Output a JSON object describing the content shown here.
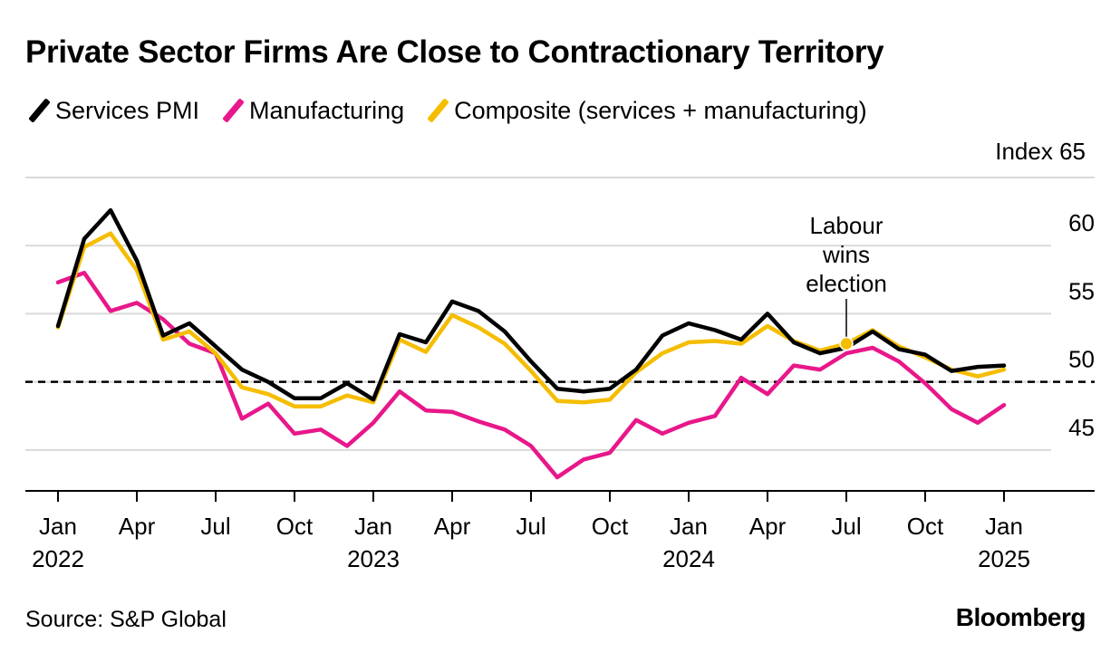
{
  "title": "Private Sector Firms Are Close to Contractionary Territory",
  "unit_label": "Index 65",
  "source": "Source: S&P Global",
  "brand": "Bloomberg",
  "colors": {
    "services": "#000000",
    "manufacturing": "#e8178a",
    "composite": "#f5bd00",
    "grid": "#d9d9d9",
    "axis": "#000000"
  },
  "chart_data": {
    "type": "line",
    "title": "Private Sector Firms Are Close to Contractionary Territory",
    "ylabel": "Index",
    "ylim": [
      42,
      65
    ],
    "yticks": [
      45,
      50,
      55,
      60
    ],
    "reference_line": 50,
    "x": [
      "2022-01",
      "2022-02",
      "2022-03",
      "2022-04",
      "2022-05",
      "2022-06",
      "2022-07",
      "2022-08",
      "2022-09",
      "2022-10",
      "2022-11",
      "2022-12",
      "2023-01",
      "2023-02",
      "2023-03",
      "2023-04",
      "2023-05",
      "2023-06",
      "2023-07",
      "2023-08",
      "2023-09",
      "2023-10",
      "2023-11",
      "2023-12",
      "2024-01",
      "2024-02",
      "2024-03",
      "2024-04",
      "2024-05",
      "2024-06",
      "2024-07",
      "2024-08",
      "2024-09",
      "2024-10",
      "2024-11",
      "2024-12",
      "2025-01"
    ],
    "x_ticks": [
      {
        "index": 0,
        "label": "Jan",
        "year": "2022"
      },
      {
        "index": 3,
        "label": "Apr"
      },
      {
        "index": 6,
        "label": "Jul"
      },
      {
        "index": 9,
        "label": "Oct"
      },
      {
        "index": 12,
        "label": "Jan",
        "year": "2023"
      },
      {
        "index": 15,
        "label": "Apr"
      },
      {
        "index": 18,
        "label": "Jul"
      },
      {
        "index": 21,
        "label": "Oct"
      },
      {
        "index": 24,
        "label": "Jan",
        "year": "2024"
      },
      {
        "index": 27,
        "label": "Apr"
      },
      {
        "index": 30,
        "label": "Jul"
      },
      {
        "index": 33,
        "label": "Oct"
      },
      {
        "index": 36,
        "label": "Jan",
        "year": "2025"
      }
    ],
    "series": [
      {
        "key": "manufacturing",
        "name": "Manufacturing",
        "values": [
          57.3,
          58.0,
          55.2,
          55.8,
          54.6,
          52.8,
          52.1,
          47.3,
          48.4,
          46.2,
          46.5,
          45.3,
          47.0,
          49.3,
          47.9,
          47.8,
          47.1,
          46.5,
          45.3,
          43.0,
          44.3,
          44.8,
          47.2,
          46.2,
          47.0,
          47.5,
          50.3,
          49.1,
          51.2,
          50.9,
          52.1,
          52.5,
          51.5,
          49.9,
          48.0,
          47.0,
          48.3
        ]
      },
      {
        "key": "composite",
        "name": "Composite (services + manufacturing)",
        "values": [
          54.0,
          59.9,
          60.9,
          58.2,
          53.1,
          53.7,
          52.1,
          49.6,
          49.1,
          48.2,
          48.2,
          49.0,
          48.5,
          53.1,
          52.2,
          54.9,
          54.0,
          52.8,
          50.8,
          48.6,
          48.5,
          48.7,
          50.7,
          52.1,
          52.9,
          53.0,
          52.8,
          54.1,
          53.0,
          52.3,
          52.8,
          53.8,
          52.6,
          51.8,
          50.9,
          50.4,
          50.9
        ]
      },
      {
        "key": "services",
        "name": "Services PMI",
        "values": [
          54.1,
          60.5,
          62.6,
          58.9,
          53.4,
          54.3,
          52.6,
          50.9,
          50.0,
          48.8,
          48.8,
          49.9,
          48.7,
          53.5,
          52.9,
          55.9,
          55.2,
          53.7,
          51.5,
          49.5,
          49.3,
          49.5,
          50.9,
          53.4,
          54.3,
          53.8,
          53.1,
          55.0,
          52.9,
          52.1,
          52.5,
          53.7,
          52.4,
          52.0,
          50.8,
          51.1,
          51.2
        ]
      }
    ],
    "annotation": {
      "text_lines": [
        "Labour",
        "wins",
        "election"
      ],
      "x_index": 30,
      "series": "composite"
    }
  }
}
